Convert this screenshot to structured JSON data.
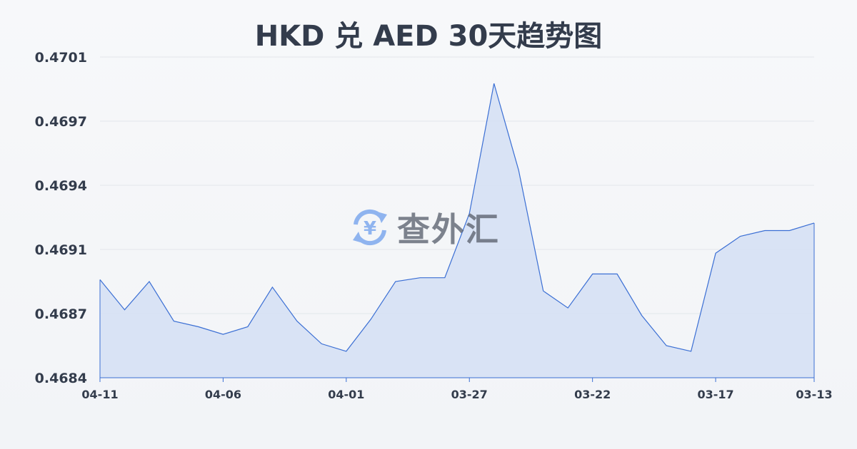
{
  "chart_data": {
    "type": "area",
    "title": "HKD 兑 AED 30天趋势图",
    "xlabel": "",
    "ylabel": "",
    "x": [
      "04-11",
      "04-10",
      "04-09",
      "04-08",
      "04-07",
      "04-06",
      "04-05",
      "04-04",
      "04-03",
      "04-02",
      "04-01",
      "03-31",
      "03-30",
      "03-29",
      "03-28",
      "03-27",
      "03-26",
      "03-25",
      "03-24",
      "03-23",
      "03-22",
      "03-21",
      "03-20",
      "03-19",
      "03-18",
      "03-17",
      "03-16",
      "03-15",
      "03-14",
      "03-13"
    ],
    "values": [
      0.4689,
      0.46874,
      0.46889,
      0.46868,
      0.46865,
      0.46861,
      0.46865,
      0.46886,
      0.46868,
      0.46856,
      0.46852,
      0.46869,
      0.46889,
      0.46891,
      0.46891,
      0.46925,
      0.46994,
      0.46948,
      0.46884,
      0.46875,
      0.46893,
      0.46893,
      0.46871,
      0.46855,
      0.46852,
      0.46904,
      0.46913,
      0.46916,
      0.46916,
      0.4692
    ],
    "ylim": [
      0.46838,
      0.47008
    ],
    "yticks": [
      "0.4684",
      "0.4687",
      "0.4691",
      "0.4694",
      "0.4697",
      "0.4701"
    ],
    "xticks": [
      "04-11",
      "04-06",
      "04-01",
      "03-27",
      "03-22",
      "03-17",
      "03-13"
    ],
    "grid": true,
    "colors": {
      "line": "#3b6fd4",
      "fill": "#d3dff5",
      "grid": "#e3e6ea"
    }
  },
  "watermark": {
    "text": "查外汇",
    "icon": "yen-exchange-icon",
    "icon_color": "#8fb4ef"
  }
}
